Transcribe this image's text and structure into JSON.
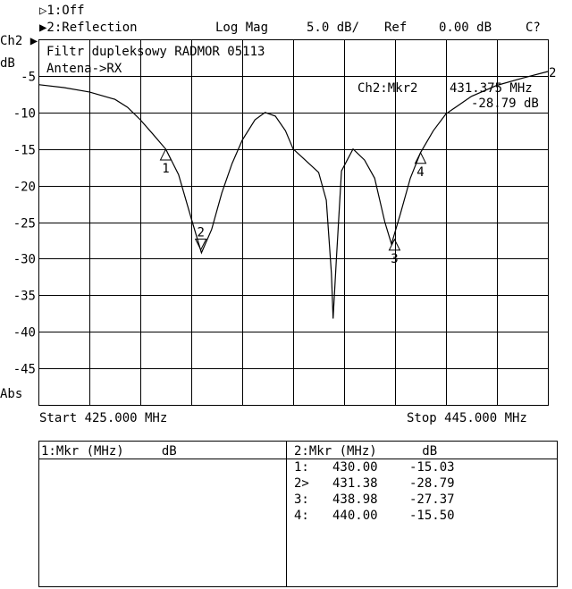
{
  "header": {
    "ch1_state": "▷1:Off",
    "ch2_state": "▶2:Reflection",
    "format": "Log Mag",
    "scale": "5.0 dB/",
    "ref_label": "Ref",
    "ref_value": "0.00 dB",
    "cal_status": "C?"
  },
  "axis_side": {
    "channel": "Ch2 ▶",
    "unit": "dB",
    "mode": "Abs"
  },
  "annotations": {
    "title_line1": "Filtr dupleksowy RADMOR 05113",
    "title_line2": "Antena->RX",
    "mkr_label": "Ch2:Mkr2",
    "mkr_freq": "431.375 MHz",
    "mkr_value": "-28.79 dB",
    "trace_label": "2"
  },
  "footer": {
    "start": "Start 425.000 MHz",
    "stop": "Stop 445.000 MHz"
  },
  "marker_table": {
    "ch1_header": "1:Mkr (MHz)     dB",
    "ch2_header": "2:Mkr (MHz)      dB",
    "ch2_rows": [
      {
        "id": "1:",
        "freq": "430.00",
        "db": "-15.03"
      },
      {
        "id": "2>",
        "freq": "431.38",
        "db": "-28.79"
      },
      {
        "id": "3:",
        "freq": "438.98",
        "db": "-27.37"
      },
      {
        "id": "4:",
        "freq": "440.00",
        "db": "-15.50"
      }
    ]
  },
  "chart_data": {
    "type": "line",
    "xlim": [
      425,
      445
    ],
    "ylim": [
      -50,
      0
    ],
    "x_divisions": 10,
    "y_tick_labels": [
      "-5",
      "-10",
      "-15",
      "-20",
      "-25",
      "-30",
      "-35",
      "-40",
      "-45"
    ],
    "y_ticks": [
      -5,
      -10,
      -15,
      -20,
      -25,
      -30,
      -35,
      -40,
      -45
    ],
    "grid": true,
    "series": [
      {
        "x": [
          425,
          426,
          427,
          428,
          428.5,
          429,
          429.5,
          430,
          430.5,
          431,
          431.4,
          431.8,
          432.2,
          432.6,
          433,
          433.5,
          433.9,
          434.3,
          434.7,
          435,
          435.5,
          436,
          436.3,
          436.5,
          436.57,
          436.7,
          436.9,
          437.35,
          437.8,
          438.2,
          438.6,
          438.86,
          439.2,
          439.6,
          440,
          440.5,
          441,
          442,
          443,
          444,
          445
        ],
        "y": [
          -6.2,
          -6.6,
          -7.2,
          -8.2,
          -9.3,
          -11,
          -13,
          -15.03,
          -18.5,
          -24.5,
          -29.2,
          -26,
          -21,
          -17,
          -13.8,
          -11,
          -10,
          -10.5,
          -12.5,
          -15,
          -16.6,
          -18.2,
          -22,
          -32,
          -38.2,
          -30,
          -18,
          -15,
          -16.5,
          -19,
          -25,
          -28,
          -24,
          -19,
          -15.5,
          -12.5,
          -10.2,
          -7.8,
          -6.3,
          -5.3,
          -4.4
        ]
      }
    ],
    "markers": [
      {
        "label": "1",
        "x": 430.0,
        "y": -15.03,
        "active": false
      },
      {
        "label": "2",
        "x": 431.375,
        "y": -28.79,
        "active": true
      },
      {
        "label": "3",
        "x": 438.98,
        "y": -27.37,
        "active": false
      },
      {
        "label": "4",
        "x": 440.0,
        "y": -15.5,
        "active": false
      }
    ],
    "colors": {
      "trace": "#000000",
      "grid": "#000000",
      "background": "#ffffff"
    }
  }
}
